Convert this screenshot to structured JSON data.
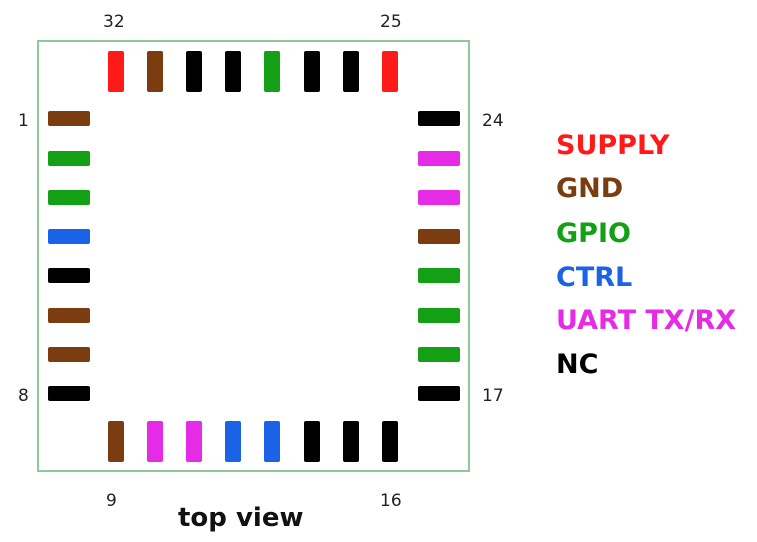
{
  "colors": {
    "supply": "#ff1a1a",
    "gnd": "#7b3c10",
    "gpio": "#14a014",
    "ctrl": "#1a63e6",
    "uart": "#e62be6",
    "nc": "#000000"
  },
  "pin_labels": {
    "top_left": "32",
    "top_right": "25",
    "left_top": "1",
    "left_bottom": "8",
    "bottom_left": "9",
    "bottom_right": "16",
    "right_top": "24",
    "right_bottom": "17"
  },
  "caption": "top view",
  "pins": {
    "top": [
      "supply",
      "gnd",
      "nc",
      "nc",
      "gpio",
      "nc",
      "nc",
      "supply"
    ],
    "left": [
      "gnd",
      "gpio",
      "gpio",
      "ctrl",
      "nc",
      "gnd",
      "gnd",
      "nc"
    ],
    "bottom": [
      "gnd",
      "uart",
      "uart",
      "ctrl",
      "ctrl",
      "nc",
      "nc",
      "nc"
    ],
    "right": [
      "nc",
      "uart",
      "uart",
      "gnd",
      "gpio",
      "gpio",
      "gpio",
      "nc"
    ]
  },
  "legend": [
    {
      "key": "supply",
      "label": "SUPPLY"
    },
    {
      "key": "gnd",
      "label": "GND"
    },
    {
      "key": "gpio",
      "label": "GPIO"
    },
    {
      "key": "ctrl",
      "label": "CTRL"
    },
    {
      "key": "uart",
      "label": "UART TX/RX"
    },
    {
      "key": "nc",
      "label": "NC"
    }
  ]
}
